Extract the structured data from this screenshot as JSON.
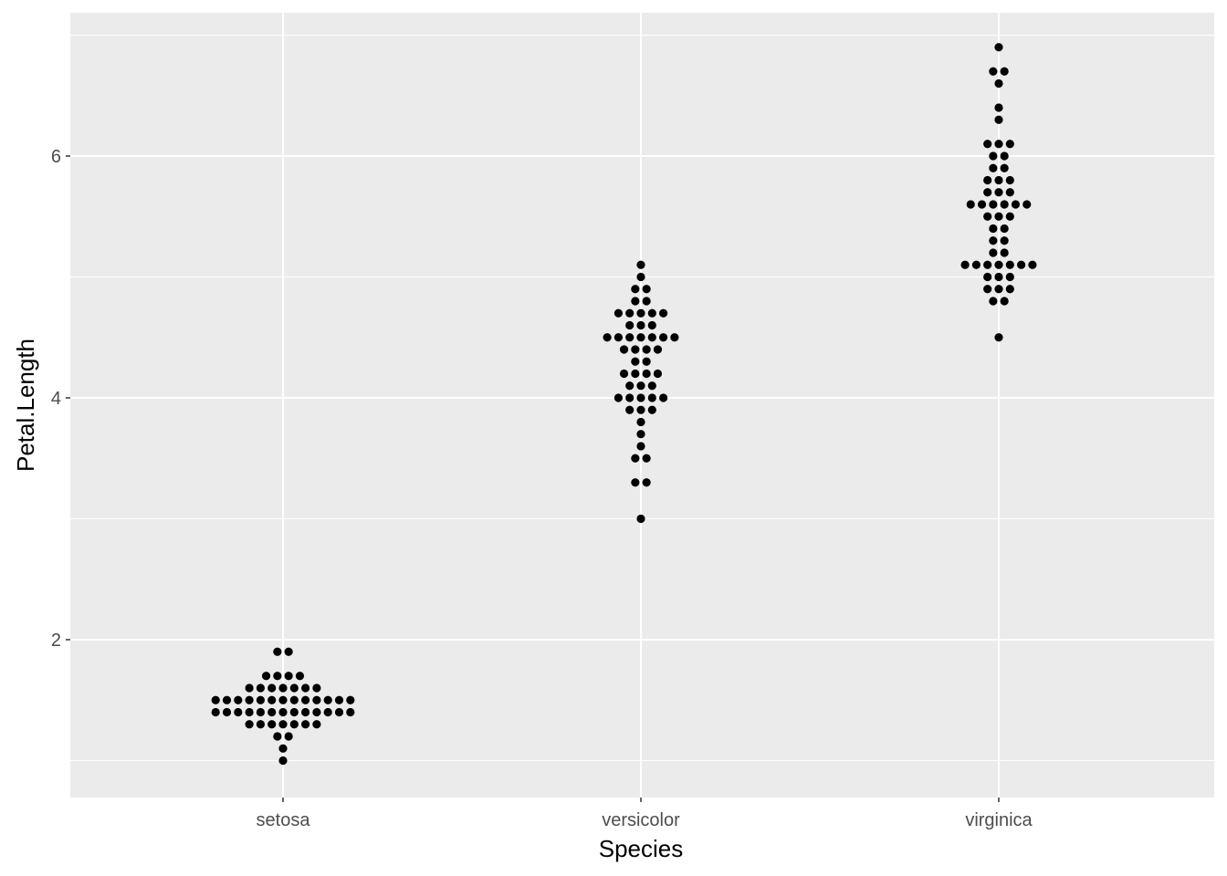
{
  "chart_data": {
    "type": "scatter",
    "subtype": "beeswarm",
    "title": "",
    "xlabel": "Species",
    "ylabel": "Petal.Length",
    "categories": [
      "setosa",
      "versicolor",
      "virginica"
    ],
    "y_ticks": [
      2,
      4,
      6
    ],
    "ylim": [
      0.7,
      7.15
    ],
    "grid": true,
    "legend": "none",
    "colors": {
      "panel": "#ebebeb",
      "grid": "#ffffff",
      "point": "#000000",
      "tick_text": "#4d4d4d"
    },
    "series": [
      {
        "category": "setosa",
        "values": [
          1.4,
          1.4,
          1.3,
          1.5,
          1.4,
          1.7,
          1.4,
          1.5,
          1.4,
          1.5,
          1.5,
          1.6,
          1.4,
          1.1,
          1.2,
          1.5,
          1.3,
          1.4,
          1.7,
          1.5,
          1.7,
          1.5,
          1.0,
          1.7,
          1.9,
          1.6,
          1.6,
          1.5,
          1.4,
          1.6,
          1.6,
          1.5,
          1.5,
          1.4,
          1.5,
          1.2,
          1.3,
          1.4,
          1.3,
          1.5,
          1.3,
          1.3,
          1.3,
          1.6,
          1.9,
          1.4,
          1.6,
          1.4,
          1.5,
          1.4
        ]
      },
      {
        "category": "versicolor",
        "values": [
          4.7,
          4.5,
          4.9,
          4.0,
          4.6,
          4.5,
          4.7,
          3.3,
          4.6,
          3.9,
          3.5,
          4.2,
          4.0,
          4.7,
          3.6,
          4.4,
          4.5,
          4.1,
          4.5,
          3.9,
          4.8,
          4.0,
          4.9,
          4.7,
          4.3,
          4.4,
          4.8,
          5.0,
          4.5,
          3.5,
          3.8,
          3.7,
          3.9,
          5.1,
          4.5,
          4.5,
          4.7,
          4.4,
          4.1,
          4.0,
          4.4,
          4.6,
          4.0,
          3.3,
          4.2,
          4.2,
          4.2,
          4.3,
          3.0,
          4.1
        ]
      },
      {
        "category": "virginica",
        "values": [
          6.0,
          5.1,
          5.9,
          5.6,
          5.8,
          6.6,
          4.5,
          6.3,
          5.8,
          6.1,
          5.1,
          5.3,
          5.5,
          5.0,
          5.1,
          5.3,
          5.5,
          6.7,
          6.9,
          5.0,
          5.7,
          4.9,
          6.7,
          4.9,
          5.7,
          6.0,
          4.8,
          4.9,
          5.6,
          5.8,
          6.1,
          6.4,
          5.6,
          5.1,
          5.6,
          6.1,
          5.6,
          5.5,
          4.8,
          5.4,
          5.6,
          5.1,
          5.1,
          5.9,
          5.7,
          5.2,
          5.0,
          5.2,
          5.4,
          5.1
        ]
      }
    ]
  }
}
